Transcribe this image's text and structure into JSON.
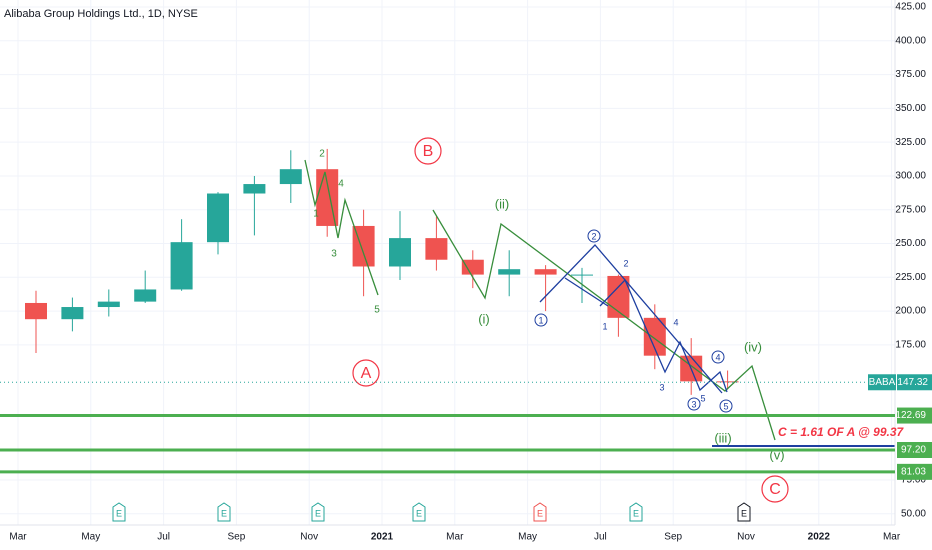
{
  "chart_data": {
    "type": "candlestick",
    "title": "Alibaba Group Holdings Ltd., 1D, NYSE",
    "categories": [
      "2020-03",
      "2020-04",
      "2020-05",
      "2020-06",
      "2020-07",
      "2020-08",
      "2020-09",
      "2020-10",
      "2020-11",
      "2020-12",
      "2021-01",
      "2021-02",
      "2021-03",
      "2021-04",
      "2021-05",
      "2021-06",
      "2021-07",
      "2021-08",
      "2021-09",
      "2021-10"
    ],
    "open": [
      206,
      194,
      203,
      207,
      216,
      251,
      287,
      294,
      305,
      263,
      233,
      254,
      238,
      227,
      231,
      227,
      226,
      195,
      167,
      148
    ],
    "high": [
      215,
      210,
      216,
      230,
      268,
      288,
      300,
      319,
      320,
      275,
      274,
      270,
      245,
      245,
      234,
      232,
      227,
      205,
      180,
      156
    ],
    "low": [
      169,
      185,
      196,
      206,
      215,
      242,
      256,
      280,
      255,
      211,
      223,
      230,
      217,
      211,
      200,
      206,
      181,
      157,
      138,
      142
    ],
    "close": [
      194,
      203,
      207,
      216,
      251,
      287,
      294,
      305,
      263,
      233,
      254,
      238,
      227,
      231,
      227,
      227,
      195,
      167,
      148,
      147.32
    ],
    "up_color": "#26a69a",
    "down_color": "#ef5350",
    "ylim": [
      41.7,
      430.2
    ],
    "yticks": [
      50,
      75,
      175,
      200,
      225,
      250,
      275,
      300,
      325,
      350,
      375,
      400,
      425
    ],
    "ytick_labels": [
      "50.00",
      "75.00",
      "175.00",
      "200.00",
      "225.00",
      "250.00",
      "275.00",
      "300.00",
      "325.00",
      "350.00",
      "375.00",
      "400.00",
      "425.00"
    ],
    "xticks": [
      {
        "value": "2020-03",
        "label": "Mar"
      },
      {
        "value": "2020-05",
        "label": "May"
      },
      {
        "value": "2020-07",
        "label": "Jul"
      },
      {
        "value": "2020-09",
        "label": "Sep"
      },
      {
        "value": "2020-11",
        "label": "Nov"
      },
      {
        "value": "2021-01",
        "label": "2021"
      },
      {
        "value": "2021-03",
        "label": "Mar"
      },
      {
        "value": "2021-05",
        "label": "May"
      },
      {
        "value": "2021-07",
        "label": "Jul"
      },
      {
        "value": "2021-09",
        "label": "Sep"
      },
      {
        "value": "2021-11",
        "label": "Nov"
      },
      {
        "value": "2022-01",
        "label": "2022"
      },
      {
        "value": "2022-03",
        "label": "Mar"
      }
    ],
    "grid": true,
    "symbol": "BABA",
    "last_price": 147.32,
    "last_price_label": "147.32",
    "level_color": "#4caf50",
    "levels": [
      122.69,
      97.2,
      81.03
    ],
    "level_labels": [
      "122.69",
      "97.20",
      "81.03"
    ],
    "target_note": "C = 1.61 OF A @ 99.37",
    "wave_labels": [
      "A",
      "B",
      "C"
    ],
    "green_labels": [
      "2",
      "4",
      "1",
      "3",
      "5",
      "(i)",
      "(ii)",
      "(iii)",
      "(iv)",
      "(v)"
    ],
    "blue_circled": [
      "1",
      "2",
      "3",
      "4",
      "5"
    ],
    "blue_labels": [
      "1",
      "2",
      "3",
      "4",
      "5"
    ],
    "earnings": [
      "E",
      "E",
      "E",
      "E",
      "E",
      "E",
      "E"
    ]
  }
}
